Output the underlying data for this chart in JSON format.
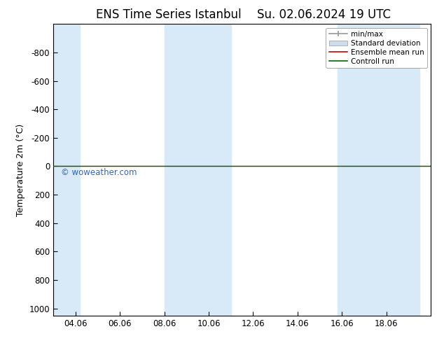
{
  "title": "ENS Time Series Istanbul",
  "title2": "Su. 02.06.2024 19 UTC",
  "ylabel": "Temperature 2m (°C)",
  "ylim_top": -1000,
  "ylim_bottom": 1050,
  "yticks": [
    -800,
    -600,
    -400,
    -200,
    0,
    200,
    400,
    600,
    800,
    1000
  ],
  "xtick_labels": [
    "04.06",
    "06.06",
    "08.06",
    "10.06",
    "12.06",
    "14.06",
    "16.06",
    "18.06"
  ],
  "xtick_positions": [
    3,
    5,
    7,
    9,
    11,
    13,
    15,
    17
  ],
  "xlim": [
    2,
    19
  ],
  "blue_bands": [
    [
      2,
      3.2
    ],
    [
      7,
      8.5
    ],
    [
      8.5,
      10
    ],
    [
      14.8,
      15.8
    ],
    [
      15.8,
      18.5
    ]
  ],
  "green_line_y": 0,
  "red_line_y": 0,
  "watermark": "© woweather.com",
  "watermark_color": "#3366CC",
  "background_color": "#ffffff",
  "plot_bg_color": "#ffffff",
  "band_color": "#d8eaf8",
  "legend_labels": [
    "min/max",
    "Standard deviation",
    "Ensemble mean run",
    "Controll run"
  ],
  "legend_line_color": "#999999",
  "legend_patch_color": "#ccddee",
  "legend_red": "#cc0000",
  "legend_green": "#006600",
  "title_fontsize": 12,
  "axis_fontsize": 9,
  "tick_fontsize": 8.5
}
